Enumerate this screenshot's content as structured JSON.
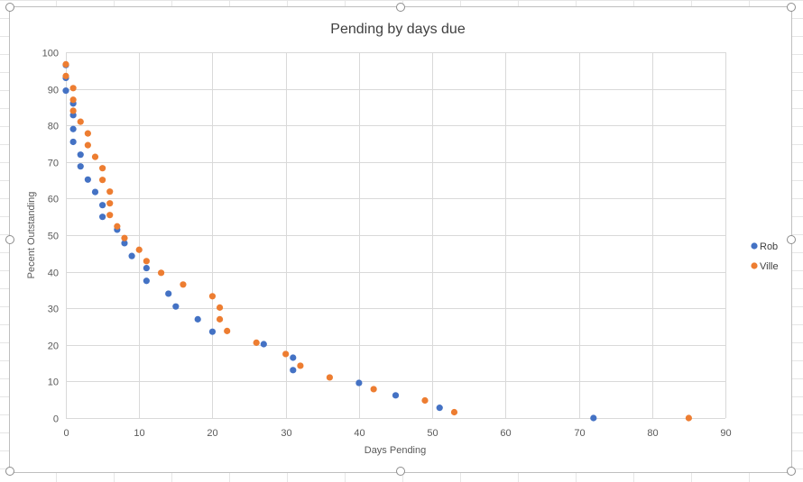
{
  "chart_data": {
    "type": "scatter",
    "title": "Pending by days due",
    "xlabel": "Days Pending",
    "ylabel": "Pecent Outstanding",
    "xlim": [
      0,
      90
    ],
    "ylim": [
      0,
      100
    ],
    "x_ticks": [
      "0",
      "10",
      "20",
      "30",
      "40",
      "50",
      "60",
      "70",
      "80",
      "90"
    ],
    "y_ticks": [
      "0",
      "10",
      "20",
      "30",
      "40",
      "50",
      "60",
      "70",
      "80",
      "90",
      "100"
    ],
    "grid": true,
    "legend_position": "right",
    "series": [
      {
        "name": "Rob",
        "color": "#4472c4",
        "points": [
          [
            0,
            96.5
          ],
          [
            0,
            93
          ],
          [
            0,
            89.5
          ],
          [
            1,
            86
          ],
          [
            1,
            82.8
          ],
          [
            1,
            79
          ],
          [
            1,
            75.5
          ],
          [
            2,
            72
          ],
          [
            2,
            68.8
          ],
          [
            3,
            65.2
          ],
          [
            4,
            61.8
          ],
          [
            5,
            58.2
          ],
          [
            5,
            55
          ],
          [
            7,
            51.5
          ],
          [
            8,
            47.8
          ],
          [
            9,
            44.3
          ],
          [
            11,
            41
          ],
          [
            11,
            37.5
          ],
          [
            14,
            34
          ],
          [
            15,
            30.5
          ],
          [
            18,
            27
          ],
          [
            20,
            23.6
          ],
          [
            27,
            20.2
          ],
          [
            31,
            16.5
          ],
          [
            31,
            13.1
          ],
          [
            40,
            9.6
          ],
          [
            45,
            6.2
          ],
          [
            51,
            2.8
          ],
          [
            72,
            0
          ]
        ]
      },
      {
        "name": "Ville",
        "color": "#ed7d31",
        "points": [
          [
            0,
            96.7
          ],
          [
            0,
            93.5
          ],
          [
            1,
            90.2
          ],
          [
            1,
            87
          ],
          [
            1,
            84
          ],
          [
            2,
            81
          ],
          [
            3,
            77.8
          ],
          [
            3,
            74.6
          ],
          [
            4,
            71.4
          ],
          [
            5,
            68.3
          ],
          [
            5,
            65.1
          ],
          [
            6,
            61.9
          ],
          [
            6,
            58.7
          ],
          [
            6,
            55.5
          ],
          [
            7,
            52.4
          ],
          [
            8,
            49.2
          ],
          [
            10,
            46
          ],
          [
            11,
            42.9
          ],
          [
            13,
            39.7
          ],
          [
            16,
            36.5
          ],
          [
            20,
            33.3
          ],
          [
            21,
            30.2
          ],
          [
            21,
            27
          ],
          [
            22,
            23.8
          ],
          [
            26,
            20.6
          ],
          [
            30,
            17.5
          ],
          [
            32,
            14.3
          ],
          [
            36,
            11.1
          ],
          [
            42,
            7.9
          ],
          [
            49,
            4.8
          ],
          [
            53,
            1.6
          ],
          [
            85,
            0
          ]
        ]
      }
    ]
  }
}
